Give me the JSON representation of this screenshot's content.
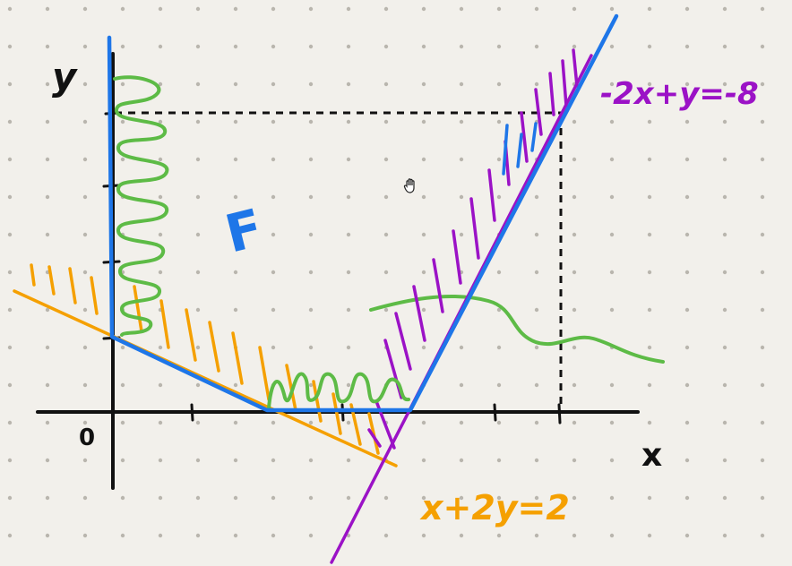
{
  "labels": {
    "y_axis": "y",
    "x_axis": "x",
    "origin": "0",
    "region": "F",
    "line_purple": "-2x+y=-8",
    "line_orange": "x+2y=2"
  },
  "colors": {
    "background": "#f2f0eb",
    "dots": "#b9b6ae",
    "axes": "#111111",
    "orange": "#f5a000",
    "purple": "#9b12c6",
    "blue": "#1e76e8",
    "green": "#5dbb46",
    "dashed": "#111111"
  },
  "cursor_icon": "hand-cursor-icon"
}
